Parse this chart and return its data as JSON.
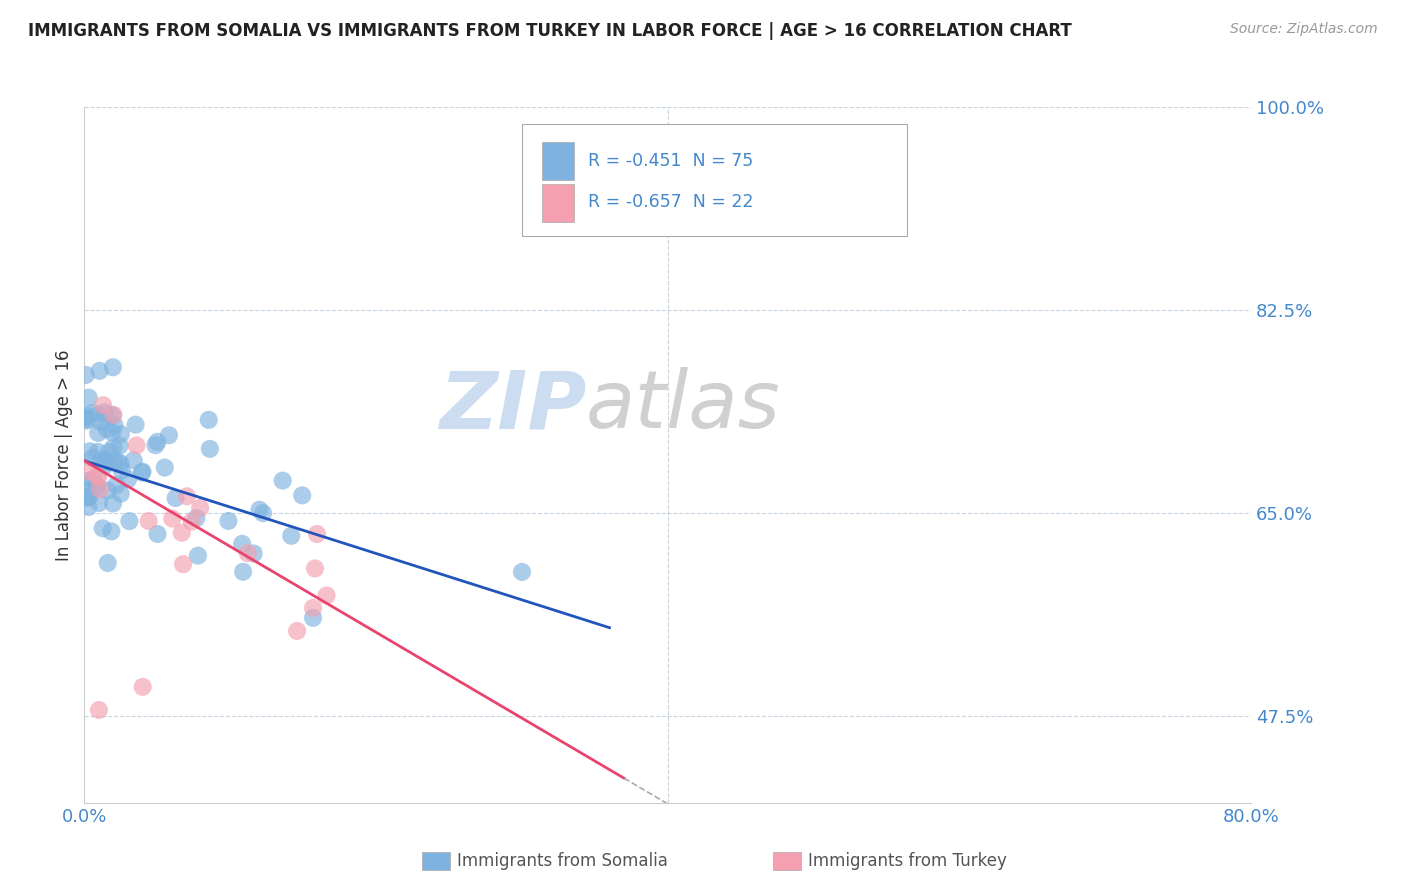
{
  "title": "IMMIGRANTS FROM SOMALIA VS IMMIGRANTS FROM TURKEY IN LABOR FORCE | AGE > 16 CORRELATION CHART",
  "source": "Source: ZipAtlas.com",
  "ylabel": "In Labor Force | Age > 16",
  "xlabel_somalia": "Immigrants from Somalia",
  "xlabel_turkey": "Immigrants from Turkey",
  "R_somalia": -0.451,
  "N_somalia": 75,
  "R_turkey": -0.657,
  "N_turkey": 22,
  "xlim": [
    0.0,
    0.8
  ],
  "ylim": [
    0.4,
    1.0
  ],
  "ytick_positions": [
    0.475,
    0.65,
    0.825,
    1.0
  ],
  "ytick_labels": [
    "47.5%",
    "65.0%",
    "82.5%",
    "100.0%"
  ],
  "xtick_positions": [
    0.0,
    0.8
  ],
  "xtick_labels": [
    "0.0%",
    "80.0%"
  ],
  "color_somalia": "#7eb3e0",
  "color_turkey": "#f4a0b0",
  "regression_color_somalia": "#2255bb",
  "regression_color_turkey": "#e8446e",
  "grid_color": "#c8d4e0",
  "watermark_zip_color": "#c5d8ef",
  "watermark_atlas_color": "#c8c8c8"
}
